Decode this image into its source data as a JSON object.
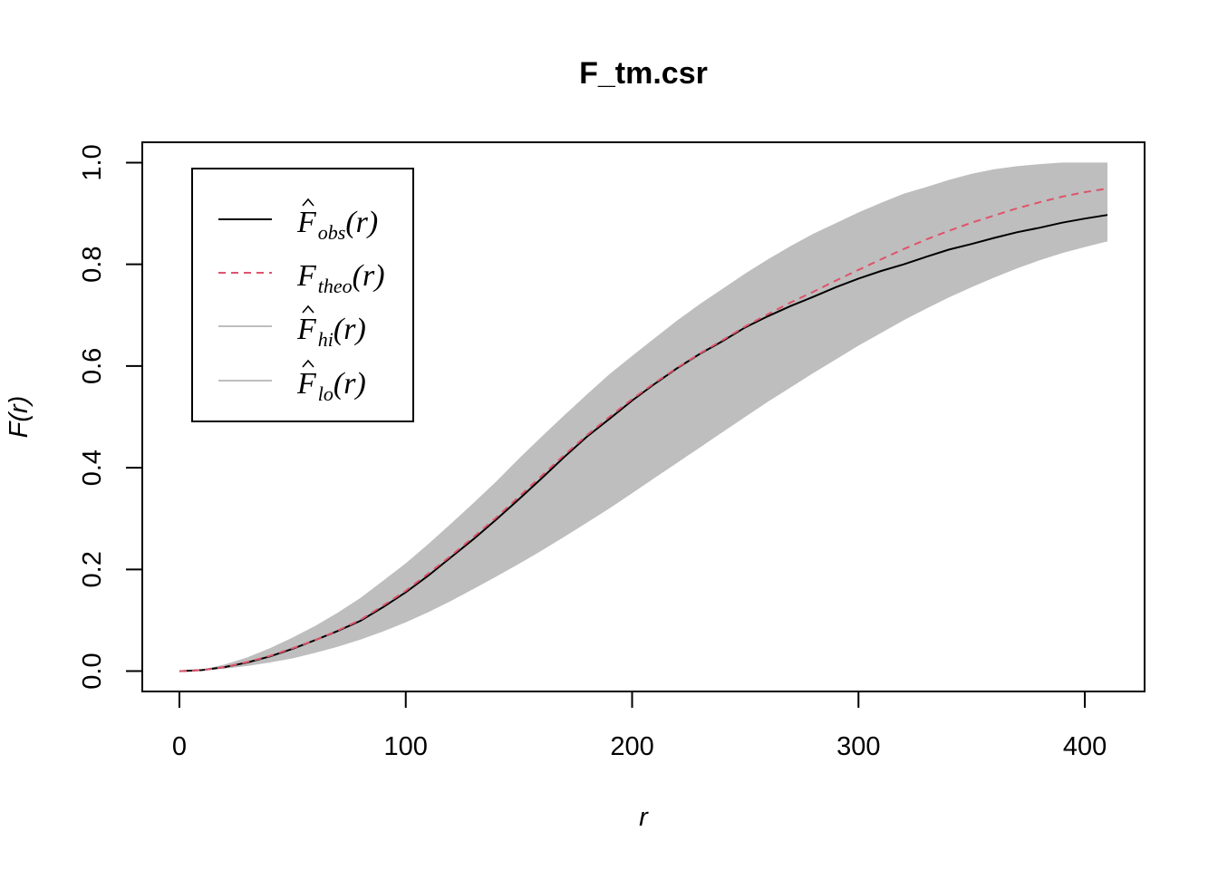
{
  "chart_data": {
    "type": "line",
    "title": "F_tm.csr",
    "xlabel": "r",
    "ylabel": "F(r)",
    "xlim": [
      -16.4,
      426.4
    ],
    "ylim": [
      -0.04,
      1.04
    ],
    "xticks": [
      "0",
      "100",
      "200",
      "300",
      "400"
    ],
    "yticks": [
      "0.0",
      "0.2",
      "0.4",
      "0.6",
      "0.8",
      "1.0"
    ],
    "grid": false,
    "legend_position": "top-left",
    "legend": [
      {
        "main": "F",
        "hat": true,
        "sub": "obs",
        "arg": "(r)",
        "color": "#000000",
        "dash": "solid"
      },
      {
        "main": "F",
        "hat": false,
        "sub": "theo",
        "arg": "(r)",
        "color": "#DF536B",
        "dash": "dashed"
      },
      {
        "main": "F",
        "hat": true,
        "sub": "hi",
        "arg": "(r)",
        "color": "#BEBEBE",
        "dash": "solid"
      },
      {
        "main": "F",
        "hat": true,
        "sub": "lo",
        "arg": "(r)",
        "color": "#BEBEBE",
        "dash": "solid"
      }
    ],
    "x": [
      0,
      10,
      20,
      30,
      40,
      50,
      60,
      70,
      80,
      90,
      100,
      110,
      120,
      130,
      140,
      150,
      160,
      170,
      180,
      190,
      200,
      210,
      220,
      230,
      240,
      250,
      260,
      270,
      280,
      290,
      300,
      310,
      320,
      330,
      340,
      350,
      360,
      370,
      380,
      390,
      400,
      410
    ],
    "series": [
      {
        "name": "obs",
        "color": "#000000",
        "values": [
          0,
          0.002,
          0.008,
          0.017,
          0.029,
          0.044,
          0.061,
          0.079,
          0.099,
          0.126,
          0.155,
          0.188,
          0.224,
          0.26,
          0.298,
          0.338,
          0.379,
          0.421,
          0.461,
          0.496,
          0.532,
          0.565,
          0.596,
          0.624,
          0.649,
          0.676,
          0.698,
          0.718,
          0.736,
          0.755,
          0.772,
          0.787,
          0.8,
          0.815,
          0.829,
          0.84,
          0.852,
          0.863,
          0.872,
          0.882,
          0.89,
          0.897
        ]
      },
      {
        "name": "theo",
        "color": "#DF536B",
        "values": [
          0,
          0.002,
          0.008,
          0.018,
          0.03,
          0.045,
          0.061,
          0.08,
          0.101,
          0.129,
          0.158,
          0.192,
          0.227,
          0.264,
          0.302,
          0.343,
          0.384,
          0.425,
          0.464,
          0.5,
          0.535,
          0.567,
          0.597,
          0.625,
          0.651,
          0.678,
          0.702,
          0.725,
          0.746,
          0.768,
          0.789,
          0.81,
          0.83,
          0.849,
          0.866,
          0.882,
          0.896,
          0.91,
          0.922,
          0.933,
          0.942,
          0.949
        ]
      },
      {
        "name": "hi",
        "color": "#BEBEBE",
        "values": [
          0,
          0.003,
          0.013,
          0.027,
          0.045,
          0.066,
          0.089,
          0.115,
          0.144,
          0.178,
          0.212,
          0.25,
          0.29,
          0.331,
          0.373,
          0.418,
          0.461,
          0.503,
          0.544,
          0.584,
          0.62,
          0.655,
          0.69,
          0.722,
          0.752,
          0.782,
          0.81,
          0.836,
          0.86,
          0.881,
          0.902,
          0.921,
          0.939,
          0.952,
          0.966,
          0.978,
          0.987,
          0.993,
          0.997,
          1.0,
          1.0,
          1.0
        ]
      },
      {
        "name": "lo",
        "color": "#BEBEBE",
        "values": [
          0,
          0.001,
          0.005,
          0.01,
          0.017,
          0.025,
          0.036,
          0.048,
          0.062,
          0.078,
          0.096,
          0.116,
          0.138,
          0.162,
          0.186,
          0.211,
          0.237,
          0.264,
          0.292,
          0.32,
          0.35,
          0.38,
          0.41,
          0.44,
          0.47,
          0.5,
          0.53,
          0.558,
          0.586,
          0.613,
          0.64,
          0.665,
          0.69,
          0.713,
          0.735,
          0.755,
          0.774,
          0.792,
          0.808,
          0.822,
          0.834,
          0.845
        ]
      }
    ]
  }
}
